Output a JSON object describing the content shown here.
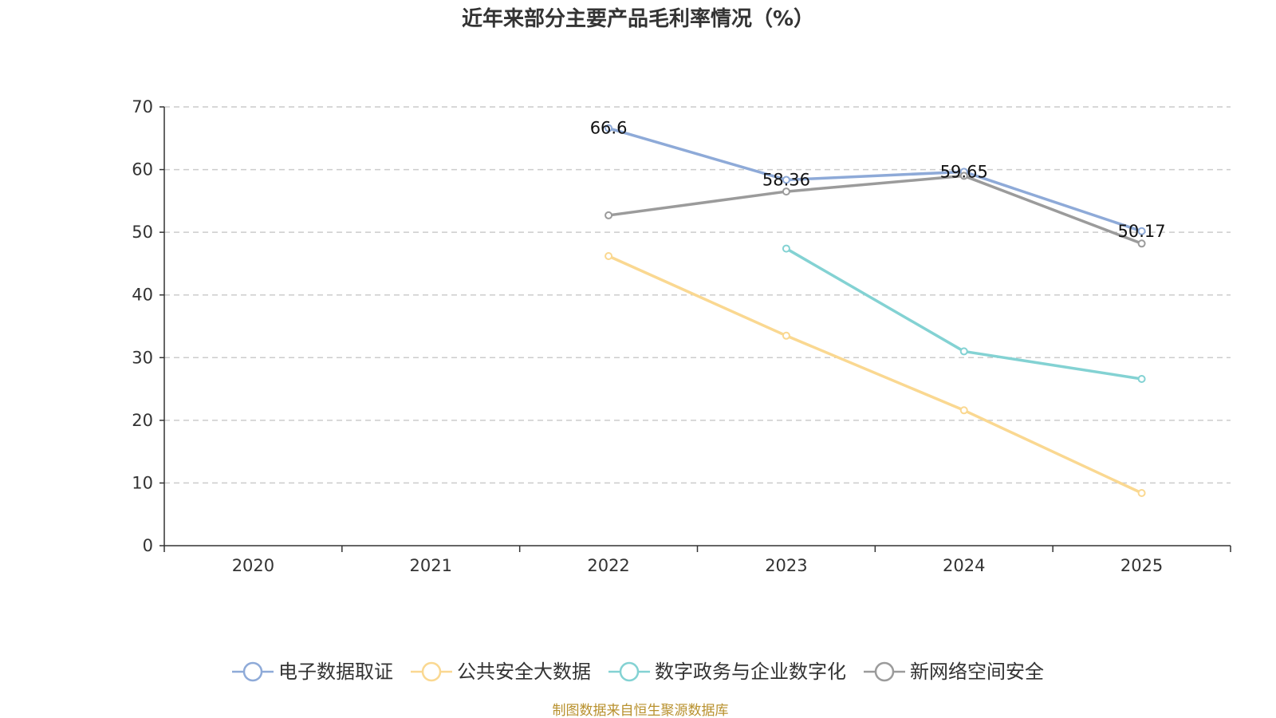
{
  "chart_data": {
    "type": "line",
    "title": "近年来部分主要产品毛利率情况（%）",
    "categories": [
      "2020",
      "2021",
      "2022",
      "2023",
      "2024",
      "2025"
    ],
    "ylim": [
      0,
      70
    ],
    "yticks": [
      "0",
      "10",
      "20",
      "30",
      "40",
      "50",
      "60",
      "70"
    ],
    "grid": true,
    "legend_position": "bottom",
    "series": [
      {
        "name": "电子数据取证",
        "color": "#8eaad8",
        "values": [
          null,
          null,
          66.6,
          58.36,
          59.65,
          50.17
        ],
        "labels": [
          null,
          null,
          "66.6",
          "58.36",
          "59.65",
          "50.17"
        ]
      },
      {
        "name": "公共安全大数据",
        "color": "#fad891",
        "values": [
          null,
          null,
          46.2,
          33.5,
          21.6,
          8.4
        ],
        "labels": [
          null,
          null,
          null,
          null,
          null,
          null
        ]
      },
      {
        "name": "数字政务与企业数字化",
        "color": "#83d2d3",
        "values": [
          null,
          null,
          null,
          47.4,
          31.0,
          26.6
        ],
        "labels": [
          null,
          null,
          null,
          null,
          null,
          null
        ]
      },
      {
        "name": "新网络空间安全",
        "color": "#9b9b9b",
        "values": [
          null,
          null,
          52.7,
          56.5,
          59.0,
          48.2
        ],
        "labels": [
          null,
          null,
          null,
          null,
          null,
          null
        ]
      }
    ]
  },
  "source": "制图数据来自恒生聚源数据库"
}
